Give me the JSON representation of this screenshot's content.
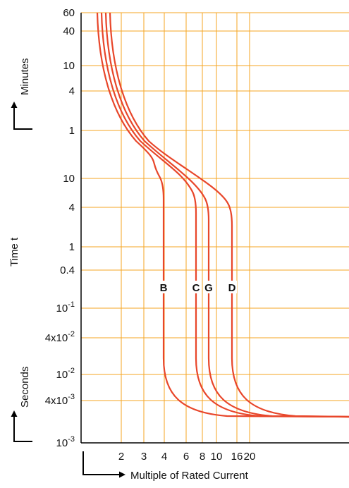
{
  "chart_data": {
    "type": "line",
    "title": "",
    "xlabel": "Multiple of Rated Current",
    "ylabel": "Time t",
    "y_unit_labels": {
      "minutes": "Minutes",
      "seconds": "Seconds"
    },
    "x_scale": "log",
    "y_scale": "log",
    "grid": true,
    "x_ticks": [
      "2",
      "3",
      "4",
      "6",
      "8",
      "10",
      "16",
      "20"
    ],
    "y_ticks_minutes": [
      "60",
      "40",
      "10",
      "4",
      "1"
    ],
    "y_ticks_seconds": [
      {
        "base": "10",
        "mantissa": "",
        "exp": ""
      },
      {
        "base": "4",
        "mantissa": "",
        "exp": ""
      },
      {
        "base": "1",
        "mantissa": "",
        "exp": ""
      },
      {
        "base": "0.4",
        "mantissa": "",
        "exp": ""
      },
      {
        "base": "10",
        "mantissa": "",
        "exp": "-1"
      },
      {
        "base": "10",
        "mantissa": "4x",
        "exp": "-2"
      },
      {
        "base": "10",
        "mantissa": "",
        "exp": "-2"
      },
      {
        "base": "10",
        "mantissa": "4x",
        "exp": "-3"
      },
      {
        "base": "10",
        "mantissa": "",
        "exp": "-3"
      }
    ],
    "series": [
      {
        "name": "B",
        "trip_multiple": 4,
        "min_multiple": 1.15,
        "plateau_s": 0.0025
      },
      {
        "name": "C",
        "trip_multiple": 7,
        "min_multiple": 1.22,
        "plateau_s": 0.0025
      },
      {
        "name": "G",
        "trip_multiple": 9,
        "min_multiple": 1.29,
        "plateau_s": 0.0025
      },
      {
        "name": "D",
        "trip_multiple": 13,
        "min_multiple": 1.36,
        "plateau_s": 0.0025
      }
    ],
    "colors": {
      "grid": "#f5a623",
      "curve": "#e8462a",
      "axis": "#000000"
    }
  }
}
